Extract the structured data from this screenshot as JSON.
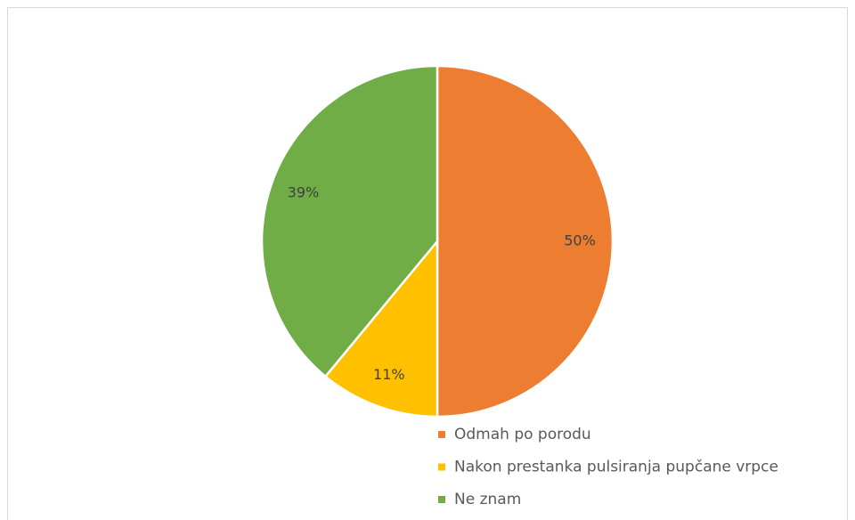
{
  "chart_data": {
    "type": "pie",
    "categories": [
      "Odmah po porodu",
      "Nakon prestanka pulsiranja pupčane vrpce",
      "Ne znam"
    ],
    "values": [
      50,
      11,
      39
    ],
    "value_labels": [
      "50%",
      "11%",
      "39%"
    ],
    "colors": [
      "#ED7D31",
      "#FFC000",
      "#70AD47"
    ],
    "legend": "bottom"
  }
}
